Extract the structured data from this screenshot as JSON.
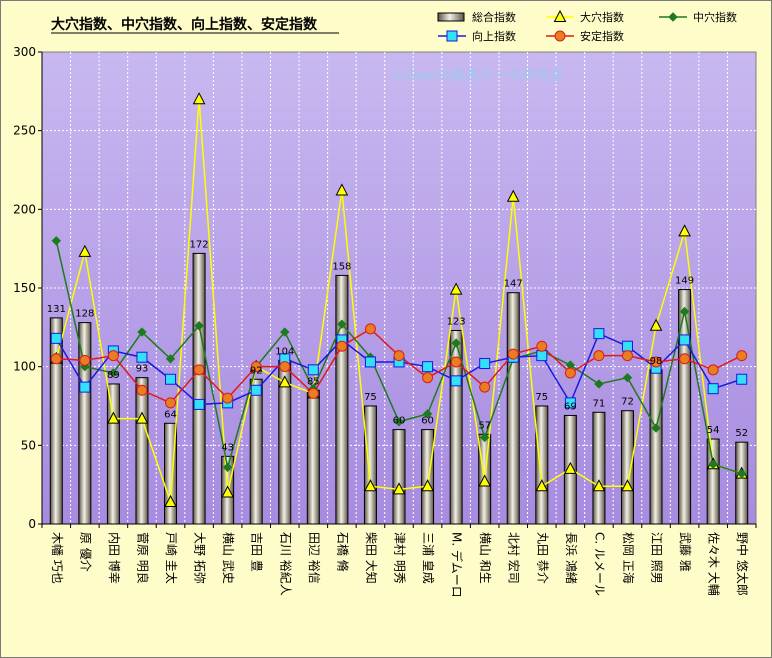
{
  "chart_data": {
    "type": "bar",
    "title": "大穴指数、中穴指数、向上指数、安定指数",
    "watermark": "©Ganiの競馬データ研究室",
    "ylim": [
      0,
      300
    ],
    "yticks": [
      0,
      50,
      100,
      150,
      200,
      250,
      300
    ],
    "grid": true,
    "legend_position": "top-right",
    "colors": {
      "background": "#fefcc8",
      "plot_top": "#c8b8f0",
      "plot_bottom": "#a78be0",
      "bar_light": "#f2f0e6",
      "bar_dark": "#5a5444",
      "daiana": "#ffff00",
      "chuana": "#1e7a1e",
      "kojo": "#1a1ae0",
      "antei": "#e01a1a",
      "marker_square": "#33e0f5",
      "marker_circle": "#e67e22"
    },
    "categories": [
      "木幡 巧也",
      "原 優介",
      "内田 博幸",
      "菅原 明良",
      "戸崎 圭太",
      "大野 拓弥",
      "横山 武史",
      "吉田 豊",
      "石川 裕紀人",
      "田辺 裕信",
      "石橋 脩",
      "柴田 大知",
      "津村 明秀",
      "三浦 皇成",
      "M. デムーロ",
      "横山 和生",
      "北村 宏司",
      "丸田 恭介",
      "長浜 鴻緒",
      "C. ルメール",
      "松岡 正海",
      "江田 照男",
      "武藤 雅",
      "佐々木 大輔",
      "野中 悠太郎"
    ],
    "series": [
      {
        "name": "総合指数",
        "kind": "bar",
        "values": [
          131,
          128,
          89,
          93,
          64,
          172,
          43,
          92,
          104,
          85,
          158,
          75,
          60,
          60,
          123,
          57,
          147,
          75,
          69,
          71,
          72,
          98,
          149,
          54,
          52
        ]
      },
      {
        "name": "大穴指数",
        "kind": "line",
        "values": [
          105,
          173,
          67,
          67,
          14,
          270,
          20,
          100,
          90,
          83,
          212,
          24,
          22,
          24,
          149,
          27,
          208,
          24,
          35,
          24,
          24,
          126,
          186,
          38,
          32
        ]
      },
      {
        "name": "中穴指数",
        "kind": "line",
        "values": [
          180,
          100,
          96,
          122,
          105,
          126,
          36,
          100,
          122,
          86,
          127,
          106,
          65,
          70,
          115,
          55,
          105,
          110,
          101,
          89,
          93,
          61,
          135,
          38,
          32
        ]
      },
      {
        "name": "向上指数",
        "kind": "line",
        "values": [
          118,
          87,
          110,
          106,
          92,
          76,
          77,
          85,
          105,
          98,
          117,
          103,
          103,
          100,
          91,
          102,
          106,
          107,
          77,
          121,
          113,
          99,
          117,
          86,
          92
        ]
      },
      {
        "name": "安定指数",
        "kind": "line",
        "values": [
          105,
          104,
          107,
          85,
          77,
          98,
          80,
          100,
          100,
          83,
          113,
          124,
          107,
          93,
          103,
          87,
          108,
          113,
          96,
          107,
          107,
          103,
          105,
          98,
          107
        ]
      }
    ]
  }
}
